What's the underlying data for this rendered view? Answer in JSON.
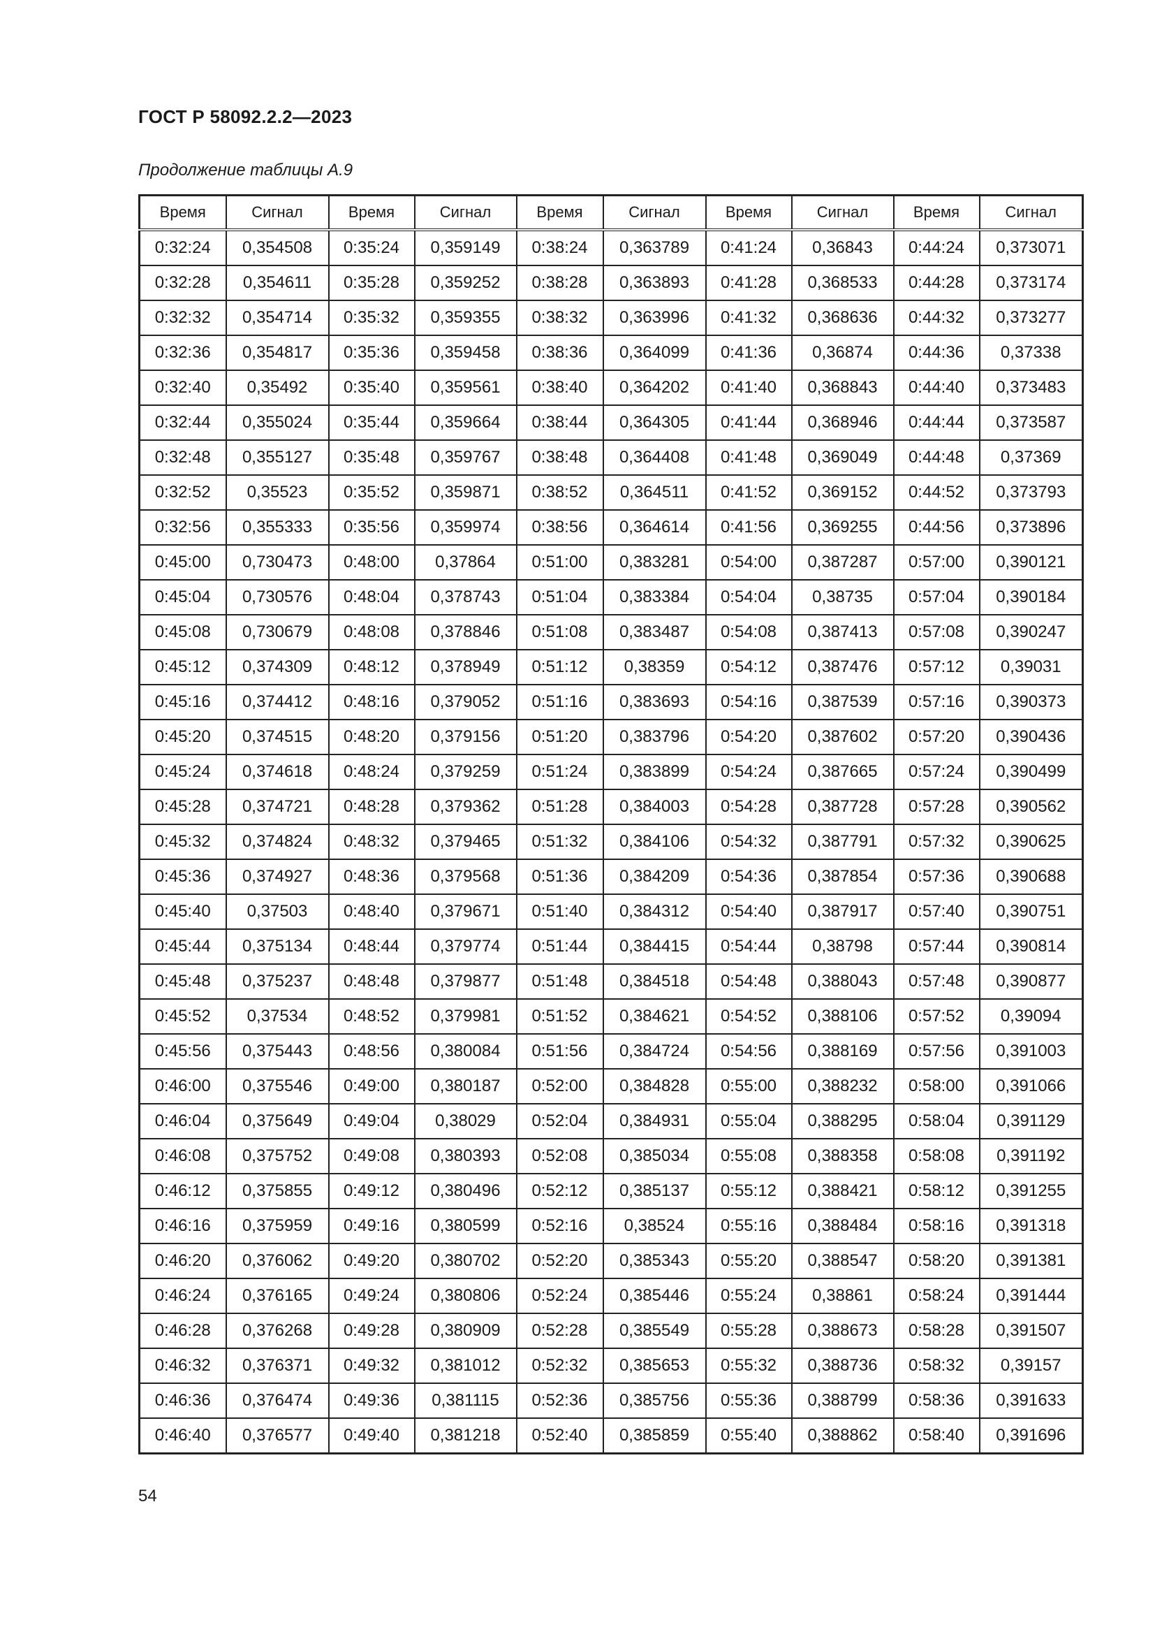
{
  "header": {
    "title": "ГОСТ Р 58092.2.2—2023"
  },
  "caption": "Продолжение таблицы А.9",
  "table": {
    "columns": [
      "Время",
      "Сигнал",
      "Время",
      "Сигнал",
      "Время",
      "Сигнал",
      "Время",
      "Сигнал",
      "Время",
      "Сигнал"
    ],
    "rows": [
      [
        "0:32:24",
        "0,354508",
        "0:35:24",
        "0,359149",
        "0:38:24",
        "0,363789",
        "0:41:24",
        "0,36843",
        "0:44:24",
        "0,373071"
      ],
      [
        "0:32:28",
        "0,354611",
        "0:35:28",
        "0,359252",
        "0:38:28",
        "0,363893",
        "0:41:28",
        "0,368533",
        "0:44:28",
        "0,373174"
      ],
      [
        "0:32:32",
        "0,354714",
        "0:35:32",
        "0,359355",
        "0:38:32",
        "0,363996",
        "0:41:32",
        "0,368636",
        "0:44:32",
        "0,373277"
      ],
      [
        "0:32:36",
        "0,354817",
        "0:35:36",
        "0,359458",
        "0:38:36",
        "0,364099",
        "0:41:36",
        "0,36874",
        "0:44:36",
        "0,37338"
      ],
      [
        "0:32:40",
        "0,35492",
        "0:35:40",
        "0,359561",
        "0:38:40",
        "0,364202",
        "0:41:40",
        "0,368843",
        "0:44:40",
        "0,373483"
      ],
      [
        "0:32:44",
        "0,355024",
        "0:35:44",
        "0,359664",
        "0:38:44",
        "0,364305",
        "0:41:44",
        "0,368946",
        "0:44:44",
        "0,373587"
      ],
      [
        "0:32:48",
        "0,355127",
        "0:35:48",
        "0,359767",
        "0:38:48",
        "0,364408",
        "0:41:48",
        "0,369049",
        "0:44:48",
        "0,37369"
      ],
      [
        "0:32:52",
        "0,35523",
        "0:35:52",
        "0,359871",
        "0:38:52",
        "0,364511",
        "0:41:52",
        "0,369152",
        "0:44:52",
        "0,373793"
      ],
      [
        "0:32:56",
        "0,355333",
        "0:35:56",
        "0,359974",
        "0:38:56",
        "0,364614",
        "0:41:56",
        "0,369255",
        "0:44:56",
        "0,373896"
      ],
      [
        "0:45:00",
        "0,730473",
        "0:48:00",
        "0,37864",
        "0:51:00",
        "0,383281",
        "0:54:00",
        "0,387287",
        "0:57:00",
        "0,390121"
      ],
      [
        "0:45:04",
        "0,730576",
        "0:48:04",
        "0,378743",
        "0:51:04",
        "0,383384",
        "0:54:04",
        "0,38735",
        "0:57:04",
        "0,390184"
      ],
      [
        "0:45:08",
        "0,730679",
        "0:48:08",
        "0,378846",
        "0:51:08",
        "0,383487",
        "0:54:08",
        "0,387413",
        "0:57:08",
        "0,390247"
      ],
      [
        "0:45:12",
        "0,374309",
        "0:48:12",
        "0,378949",
        "0:51:12",
        "0,38359",
        "0:54:12",
        "0,387476",
        "0:57:12",
        "0,39031"
      ],
      [
        "0:45:16",
        "0,374412",
        "0:48:16",
        "0,379052",
        "0:51:16",
        "0,383693",
        "0:54:16",
        "0,387539",
        "0:57:16",
        "0,390373"
      ],
      [
        "0:45:20",
        "0,374515",
        "0:48:20",
        "0,379156",
        "0:51:20",
        "0,383796",
        "0:54:20",
        "0,387602",
        "0:57:20",
        "0,390436"
      ],
      [
        "0:45:24",
        "0,374618",
        "0:48:24",
        "0,379259",
        "0:51:24",
        "0,383899",
        "0:54:24",
        "0,387665",
        "0:57:24",
        "0,390499"
      ],
      [
        "0:45:28",
        "0,374721",
        "0:48:28",
        "0,379362",
        "0:51:28",
        "0,384003",
        "0:54:28",
        "0,387728",
        "0:57:28",
        "0,390562"
      ],
      [
        "0:45:32",
        "0,374824",
        "0:48:32",
        "0,379465",
        "0:51:32",
        "0,384106",
        "0:54:32",
        "0,387791",
        "0:57:32",
        "0,390625"
      ],
      [
        "0:45:36",
        "0,374927",
        "0:48:36",
        "0,379568",
        "0:51:36",
        "0,384209",
        "0:54:36",
        "0,387854",
        "0:57:36",
        "0,390688"
      ],
      [
        "0:45:40",
        "0,37503",
        "0:48:40",
        "0,379671",
        "0:51:40",
        "0,384312",
        "0:54:40",
        "0,387917",
        "0:57:40",
        "0,390751"
      ],
      [
        "0:45:44",
        "0,375134",
        "0:48:44",
        "0,379774",
        "0:51:44",
        "0,384415",
        "0:54:44",
        "0,38798",
        "0:57:44",
        "0,390814"
      ],
      [
        "0:45:48",
        "0,375237",
        "0:48:48",
        "0,379877",
        "0:51:48",
        "0,384518",
        "0:54:48",
        "0,388043",
        "0:57:48",
        "0,390877"
      ],
      [
        "0:45:52",
        "0,37534",
        "0:48:52",
        "0,379981",
        "0:51:52",
        "0,384621",
        "0:54:52",
        "0,388106",
        "0:57:52",
        "0,39094"
      ],
      [
        "0:45:56",
        "0,375443",
        "0:48:56",
        "0,380084",
        "0:51:56",
        "0,384724",
        "0:54:56",
        "0,388169",
        "0:57:56",
        "0,391003"
      ],
      [
        "0:46:00",
        "0,375546",
        "0:49:00",
        "0,380187",
        "0:52:00",
        "0,384828",
        "0:55:00",
        "0,388232",
        "0:58:00",
        "0,391066"
      ],
      [
        "0:46:04",
        "0,375649",
        "0:49:04",
        "0,38029",
        "0:52:04",
        "0,384931",
        "0:55:04",
        "0,388295",
        "0:58:04",
        "0,391129"
      ],
      [
        "0:46:08",
        "0,375752",
        "0:49:08",
        "0,380393",
        "0:52:08",
        "0,385034",
        "0:55:08",
        "0,388358",
        "0:58:08",
        "0,391192"
      ],
      [
        "0:46:12",
        "0,375855",
        "0:49:12",
        "0,380496",
        "0:52:12",
        "0,385137",
        "0:55:12",
        "0,388421",
        "0:58:12",
        "0,391255"
      ],
      [
        "0:46:16",
        "0,375959",
        "0:49:16",
        "0,380599",
        "0:52:16",
        "0,38524",
        "0:55:16",
        "0,388484",
        "0:58:16",
        "0,391318"
      ],
      [
        "0:46:20",
        "0,376062",
        "0:49:20",
        "0,380702",
        "0:52:20",
        "0,385343",
        "0:55:20",
        "0,388547",
        "0:58:20",
        "0,391381"
      ],
      [
        "0:46:24",
        "0,376165",
        "0:49:24",
        "0,380806",
        "0:52:24",
        "0,385446",
        "0:55:24",
        "0,38861",
        "0:58:24",
        "0,391444"
      ],
      [
        "0:46:28",
        "0,376268",
        "0:49:28",
        "0,380909",
        "0:52:28",
        "0,385549",
        "0:55:28",
        "0,388673",
        "0:58:28",
        "0,391507"
      ],
      [
        "0:46:32",
        "0,376371",
        "0:49:32",
        "0,381012",
        "0:52:32",
        "0,385653",
        "0:55:32",
        "0,388736",
        "0:58:32",
        "0,39157"
      ],
      [
        "0:46:36",
        "0,376474",
        "0:49:36",
        "0,381115",
        "0:52:36",
        "0,385756",
        "0:55:36",
        "0,388799",
        "0:58:36",
        "0,391633"
      ],
      [
        "0:46:40",
        "0,376577",
        "0:49:40",
        "0,381218",
        "0:52:40",
        "0,385859",
        "0:55:40",
        "0,388862",
        "0:58:40",
        "0,391696"
      ]
    ]
  },
  "footer": {
    "page_number": "54"
  }
}
